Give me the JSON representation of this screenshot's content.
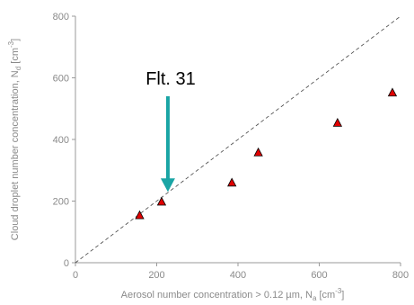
{
  "chart_data": {
    "type": "scatter",
    "xlabel": "Aerosol number concentration > 0.12 µm, N",
    "xlabel_sub": "a",
    "xlabel_unit_open": " [cm",
    "xlabel_sup": "-3",
    "xlabel_unit_close": "]",
    "ylabel": "Cloud droplet number concentration, N",
    "ylabel_sub": "d",
    "ylabel_unit_open": " [cm",
    "ylabel_sup": "-3",
    "ylabel_unit_close": "]",
    "xlim": [
      0,
      800
    ],
    "ylim": [
      0,
      800
    ],
    "xticks": [
      "0",
      "200",
      "400",
      "600",
      "800"
    ],
    "yticks": [
      "0",
      "200",
      "400",
      "600",
      "800"
    ],
    "x": [
      158,
      212,
      385,
      450,
      645,
      780
    ],
    "y": [
      153,
      197,
      259,
      357,
      453,
      551
    ],
    "one_to_one_line": true,
    "marker": "triangle",
    "marker_color": "#e00000",
    "annotation": {
      "text": "Flt. 31",
      "arrow_color": "#1aa5a5",
      "target_x": 212,
      "target_y": 230
    }
  }
}
